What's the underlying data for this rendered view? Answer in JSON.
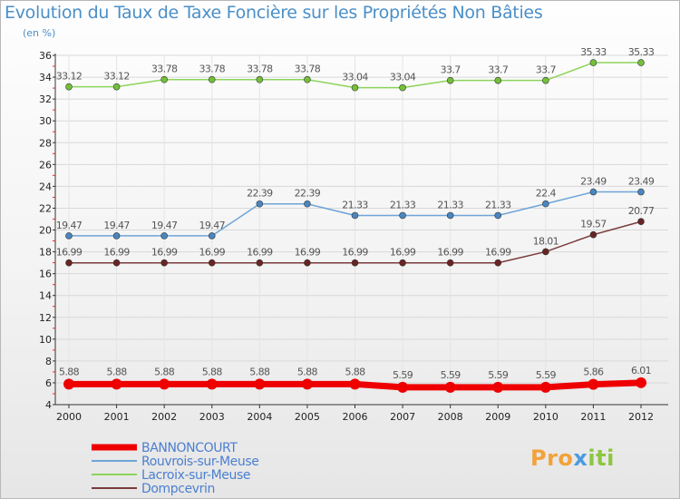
{
  "title": "Evolution du Taux de Taxe Foncière sur les Propriétés Non Bâties",
  "unit": "(en %)",
  "logo": {
    "p1": "Pro",
    "p2": "x",
    "p3": "iti"
  },
  "chart_data": {
    "type": "line",
    "x": [
      "2000",
      "2001",
      "2002",
      "2003",
      "2004",
      "2005",
      "2006",
      "2007",
      "2008",
      "2009",
      "2010",
      "2011",
      "2012"
    ],
    "ylim": [
      4,
      36
    ],
    "yticks": [
      4,
      6,
      8,
      10,
      12,
      14,
      16,
      18,
      20,
      22,
      24,
      26,
      28,
      30,
      32,
      34,
      36
    ],
    "grid": true,
    "legend": "bottom-left",
    "series": [
      {
        "name": "Lacroix-sur-Meuse",
        "color": "#8cd45a",
        "dot": "#74c038",
        "width": 1.5,
        "r": 3.5,
        "values": [
          33.12,
          33.12,
          33.78,
          33.78,
          33.78,
          33.78,
          33.04,
          33.04,
          33.7,
          33.7,
          33.7,
          35.33,
          35.33
        ],
        "labels": [
          "33.12",
          "33.12",
          "33.78",
          "33.78",
          "33.78",
          "33.78",
          "33.04",
          "33.04",
          "33.7",
          "33.7",
          "33.7",
          "35.33",
          "35.33"
        ]
      },
      {
        "name": "Rouvrois-sur-Meuse",
        "color": "#6fa4d8",
        "dot": "#4a86c0",
        "width": 1.5,
        "r": 3.5,
        "values": [
          19.47,
          19.47,
          19.47,
          19.47,
          22.39,
          22.39,
          21.33,
          21.33,
          21.33,
          21.33,
          22.4,
          23.49,
          23.49
        ],
        "labels": [
          "19.47",
          "19.47",
          "19.47",
          "19.47",
          "22.39",
          "22.39",
          "21.33",
          "21.33",
          "21.33",
          "21.33",
          "22.4",
          "23.49",
          "23.49"
        ]
      },
      {
        "name": "Dompcevrin",
        "color": "#7a3a3a",
        "dot": "#6a2424",
        "width": 1.5,
        "r": 3.5,
        "values": [
          16.99,
          16.99,
          16.99,
          16.99,
          16.99,
          16.99,
          16.99,
          16.99,
          16.99,
          16.99,
          18.01,
          19.57,
          20.77
        ],
        "labels": [
          "16.99",
          "16.99",
          "16.99",
          "16.99",
          "16.99",
          "16.99",
          "16.99",
          "16.99",
          "16.99",
          "16.99",
          "18.01",
          "19.57",
          "20.77"
        ]
      },
      {
        "name": "BANNONCOURT",
        "color": "#ee0000",
        "dot": "#ee0000",
        "width": 7,
        "r": 6,
        "values": [
          5.88,
          5.88,
          5.88,
          5.88,
          5.88,
          5.88,
          5.88,
          5.59,
          5.59,
          5.59,
          5.59,
          5.86,
          6.01
        ],
        "labels": [
          "5.88",
          "5.88",
          "5.88",
          "5.88",
          "5.88",
          "5.88",
          "5.88",
          "5.59",
          "5.59",
          "5.59",
          "5.59",
          "5.86",
          "6.01"
        ]
      }
    ],
    "legend_order": [
      "BANNONCOURT",
      "Rouvrois-sur-Meuse",
      "Lacroix-sur-Meuse",
      "Dompcevrin"
    ]
  }
}
